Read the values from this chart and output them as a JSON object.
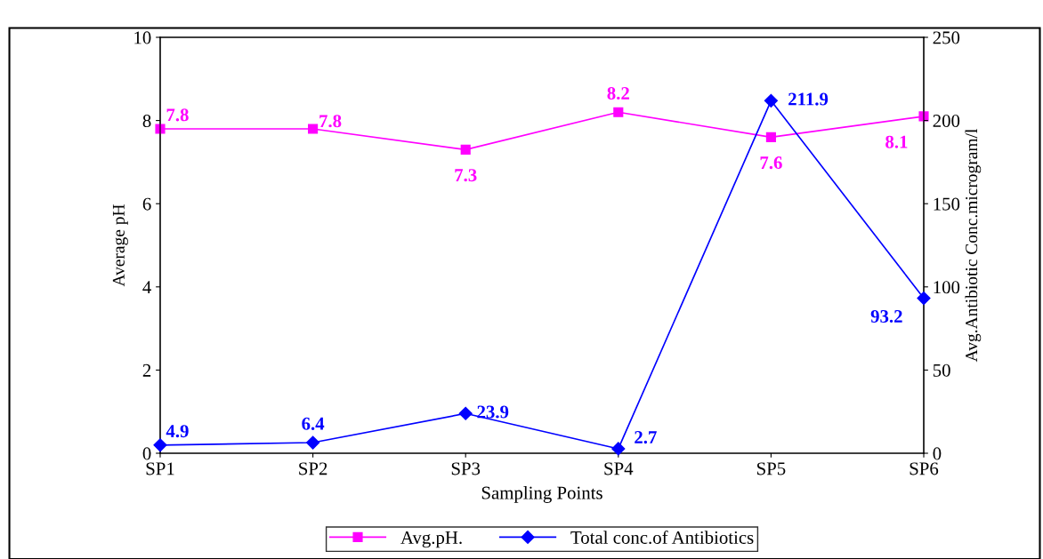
{
  "chart_data": {
    "type": "line",
    "xlabel": "Sampling Points",
    "ylabel": "Average pH",
    "y2label": "Avg.Antibiotic Conc.microgram/l",
    "categories": [
      "SP1",
      "SP2",
      "SP3",
      "SP4",
      "SP5",
      "SP6"
    ],
    "series": [
      {
        "name": "Avg.pH.",
        "color": "#ff00ff",
        "marker": "square",
        "values": [
          7.8,
          7.8,
          7.3,
          8.2,
          7.6,
          8.1
        ]
      },
      {
        "name": "Total conc.of Antibiotics",
        "color": "#0000ff",
        "marker": "diamond",
        "axis": "y2",
        "values": [
          4.9,
          6.4,
          23.9,
          2.7,
          211.9,
          93.2
        ]
      }
    ],
    "ylim": [
      0,
      10
    ],
    "yticks": [
      0,
      2,
      4,
      6,
      8,
      10
    ],
    "y2lim": [
      0,
      250
    ],
    "y2ticks": [
      0,
      50,
      100,
      150,
      200,
      250
    ],
    "data_labels": true,
    "legend": "bottom",
    "grid": false,
    "line_style": "solid"
  }
}
